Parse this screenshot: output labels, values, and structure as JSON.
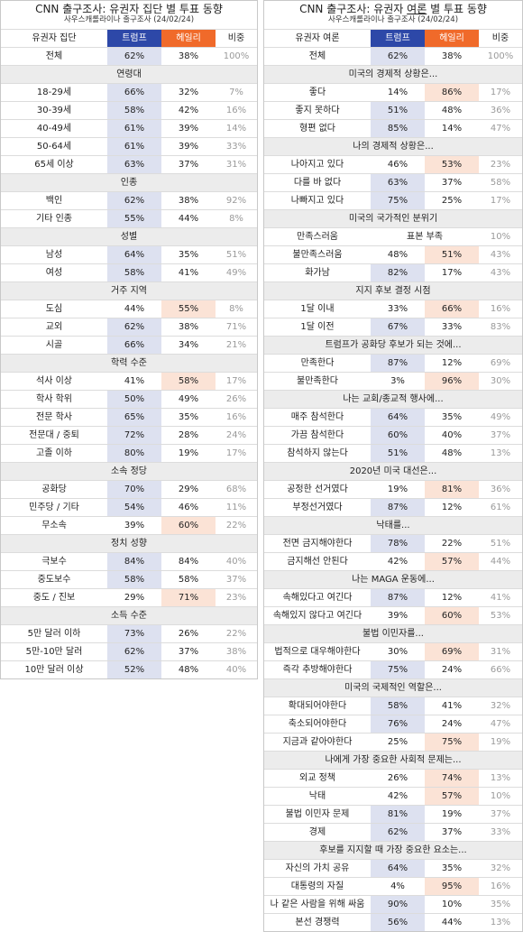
{
  "colors": {
    "trump_header": "#2d48a8",
    "haley_header": "#f06a2a",
    "trump_highlight": "#dde1f0",
    "haley_highlight": "#fbe3d6",
    "section_background": "#ececec"
  },
  "left": {
    "title_prefix": "CNN 출구조사: 유권자 집단 별 투표 동향",
    "subtitle": "사우스캐롤라이나 출구조사 (24/02/24)",
    "header": {
      "label": "유권자 집단",
      "trump": "트럼프",
      "haley": "헤일리",
      "share": "비중"
    },
    "rows": [
      {
        "type": "data",
        "label": "전체",
        "trump": "62%",
        "haley": "38%",
        "share": "100%",
        "hl": "trump"
      },
      {
        "type": "section",
        "label": "연령대"
      },
      {
        "type": "data",
        "label": "18-29세",
        "trump": "66%",
        "haley": "32%",
        "share": "7%",
        "hl": "trump"
      },
      {
        "type": "data",
        "label": "30-39세",
        "trump": "58%",
        "haley": "42%",
        "share": "16%",
        "hl": "trump"
      },
      {
        "type": "data",
        "label": "40-49세",
        "trump": "61%",
        "haley": "39%",
        "share": "14%",
        "hl": "trump"
      },
      {
        "type": "data",
        "label": "50-64세",
        "trump": "61%",
        "haley": "39%",
        "share": "33%",
        "hl": "trump"
      },
      {
        "type": "data",
        "label": "65세 이상",
        "trump": "63%",
        "haley": "37%",
        "share": "31%",
        "hl": "trump"
      },
      {
        "type": "section",
        "label": "인종"
      },
      {
        "type": "data",
        "label": "백인",
        "trump": "62%",
        "haley": "38%",
        "share": "92%",
        "hl": "trump"
      },
      {
        "type": "data",
        "label": "기타 인종",
        "trump": "55%",
        "haley": "44%",
        "share": "8%",
        "hl": "trump"
      },
      {
        "type": "section",
        "label": "성별"
      },
      {
        "type": "data",
        "label": "남성",
        "trump": "64%",
        "haley": "35%",
        "share": "51%",
        "hl": "trump"
      },
      {
        "type": "data",
        "label": "여성",
        "trump": "58%",
        "haley": "41%",
        "share": "49%",
        "hl": "trump"
      },
      {
        "type": "section",
        "label": "거주 지역"
      },
      {
        "type": "data",
        "label": "도심",
        "trump": "44%",
        "haley": "55%",
        "share": "8%",
        "hl": "haley"
      },
      {
        "type": "data",
        "label": "교외",
        "trump": "62%",
        "haley": "38%",
        "share": "71%",
        "hl": "trump"
      },
      {
        "type": "data",
        "label": "시골",
        "trump": "66%",
        "haley": "34%",
        "share": "21%",
        "hl": "trump"
      },
      {
        "type": "section",
        "label": "학력 수준"
      },
      {
        "type": "data",
        "label": "석사 이상",
        "trump": "41%",
        "haley": "58%",
        "share": "17%",
        "hl": "haley"
      },
      {
        "type": "data",
        "label": "학사 학위",
        "trump": "50%",
        "haley": "49%",
        "share": "26%",
        "hl": "trump"
      },
      {
        "type": "data",
        "label": "전문 학사",
        "trump": "65%",
        "haley": "35%",
        "share": "16%",
        "hl": "trump"
      },
      {
        "type": "data",
        "label": "전문대 / 중퇴",
        "trump": "72%",
        "haley": "28%",
        "share": "24%",
        "hl": "trump"
      },
      {
        "type": "data",
        "label": "고졸 이하",
        "trump": "80%",
        "haley": "19%",
        "share": "17%",
        "hl": "trump"
      },
      {
        "type": "section",
        "label": "소속 정당"
      },
      {
        "type": "data",
        "label": "공화당",
        "trump": "70%",
        "haley": "29%",
        "share": "68%",
        "hl": "trump"
      },
      {
        "type": "data",
        "label": "민주당 / 기타",
        "trump": "54%",
        "haley": "46%",
        "share": "11%",
        "hl": "trump"
      },
      {
        "type": "data",
        "label": "무소속",
        "trump": "39%",
        "haley": "60%",
        "share": "22%",
        "hl": "haley"
      },
      {
        "type": "section",
        "label": "정치 성향"
      },
      {
        "type": "data",
        "label": "극보수",
        "trump": "84%",
        "haley": "84%",
        "share": "40%",
        "hl": "trump"
      },
      {
        "type": "data",
        "label": "중도보수",
        "trump": "58%",
        "haley": "58%",
        "share": "37%",
        "hl": "trump"
      },
      {
        "type": "data",
        "label": "중도 / 진보",
        "trump": "29%",
        "haley": "71%",
        "share": "23%",
        "hl": "haley"
      },
      {
        "type": "section",
        "label": "소득 수준"
      },
      {
        "type": "data",
        "label": "5만 달러 이하",
        "trump": "73%",
        "haley": "26%",
        "share": "22%",
        "hl": "trump"
      },
      {
        "type": "data",
        "label": "5만-10만 달러",
        "trump": "62%",
        "haley": "37%",
        "share": "38%",
        "hl": "trump"
      },
      {
        "type": "data",
        "label": "10만 달러 이상",
        "trump": "52%",
        "haley": "48%",
        "share": "40%",
        "hl": "trump"
      }
    ]
  },
  "right": {
    "title_prefix": "CNN 출구조사: 유권자 ",
    "title_underlined": "여론",
    "title_suffix": " 별 투표 동향",
    "subtitle": "사우스캐롤라이나 출구조사 (24/02/24)",
    "header": {
      "label": "유권자 여론",
      "trump": "트럼프",
      "haley": "헤일리",
      "share": "비중"
    },
    "rows": [
      {
        "type": "data",
        "label": "전체",
        "trump": "62%",
        "haley": "38%",
        "share": "100%",
        "hl": "trump"
      },
      {
        "type": "section",
        "label": "미국의 경제적 상황은..."
      },
      {
        "type": "data",
        "label": "좋다",
        "trump": "14%",
        "haley": "86%",
        "share": "17%",
        "hl": "haley"
      },
      {
        "type": "data",
        "label": "좋지 못하다",
        "trump": "51%",
        "haley": "48%",
        "share": "36%",
        "hl": "trump"
      },
      {
        "type": "data",
        "label": "형편 없다",
        "trump": "85%",
        "haley": "14%",
        "share": "47%",
        "hl": "trump"
      },
      {
        "type": "section",
        "label": "나의 경제적 상황은..."
      },
      {
        "type": "data",
        "label": "나아지고 있다",
        "trump": "46%",
        "haley": "53%",
        "share": "23%",
        "hl": "haley"
      },
      {
        "type": "data",
        "label": "다를 바 없다",
        "trump": "63%",
        "haley": "37%",
        "share": "58%",
        "hl": "trump"
      },
      {
        "type": "data",
        "label": "나빠지고 있다",
        "trump": "75%",
        "haley": "25%",
        "share": "17%",
        "hl": "trump"
      },
      {
        "type": "section",
        "label": "미국의 국가적인 분위기"
      },
      {
        "type": "data",
        "label": "만족스러움",
        "span": "표본 부족",
        "share": "10%"
      },
      {
        "type": "data",
        "label": "불만족스러움",
        "trump": "48%",
        "haley": "51%",
        "share": "43%",
        "hl": "haley"
      },
      {
        "type": "data",
        "label": "화가남",
        "trump": "82%",
        "haley": "17%",
        "share": "43%",
        "hl": "trump"
      },
      {
        "type": "section",
        "label": "지지 후보 결정 시점"
      },
      {
        "type": "data",
        "label": "1달 이내",
        "trump": "33%",
        "haley": "66%",
        "share": "16%",
        "hl": "haley"
      },
      {
        "type": "data",
        "label": "1달 이전",
        "trump": "67%",
        "haley": "33%",
        "share": "83%",
        "hl": "trump"
      },
      {
        "type": "section",
        "label": "트럼프가 공화당 후보가 되는 것에..."
      },
      {
        "type": "data",
        "label": "만족한다",
        "trump": "87%",
        "haley": "12%",
        "share": "69%",
        "hl": "trump"
      },
      {
        "type": "data",
        "label": "불만족한다",
        "trump": "3%",
        "haley": "96%",
        "share": "30%",
        "hl": "haley"
      },
      {
        "type": "section",
        "label": "나는 교회/종교적 행사에..."
      },
      {
        "type": "data",
        "label": "매주 참석한다",
        "trump": "64%",
        "haley": "35%",
        "share": "49%",
        "hl": "trump"
      },
      {
        "type": "data",
        "label": "가끔 참석한다",
        "trump": "60%",
        "haley": "40%",
        "share": "37%",
        "hl": "trump"
      },
      {
        "type": "data",
        "label": "참석하지 않는다",
        "trump": "51%",
        "haley": "48%",
        "share": "13%",
        "hl": "trump"
      },
      {
        "type": "section",
        "label": "2020년 미국 대선은..."
      },
      {
        "type": "data",
        "label": "공정한 선거였다",
        "trump": "19%",
        "haley": "81%",
        "share": "36%",
        "hl": "haley"
      },
      {
        "type": "data",
        "label": "부정선거였다",
        "trump": "87%",
        "haley": "12%",
        "share": "61%",
        "hl": "trump"
      },
      {
        "type": "section",
        "label": "낙태를..."
      },
      {
        "type": "data",
        "label": "전면 금지해야한다",
        "trump": "78%",
        "haley": "22%",
        "share": "51%",
        "hl": "trump"
      },
      {
        "type": "data",
        "label": "금지해선 안된다",
        "trump": "42%",
        "haley": "57%",
        "share": "44%",
        "hl": "haley"
      },
      {
        "type": "section",
        "label": "나는 MAGA 운동에..."
      },
      {
        "type": "data",
        "label": "속해있다고 여긴다",
        "trump": "87%",
        "haley": "12%",
        "share": "41%",
        "hl": "trump"
      },
      {
        "type": "data",
        "label": "속해있지 않다고 여긴다",
        "trump": "39%",
        "haley": "60%",
        "share": "53%",
        "hl": "haley"
      },
      {
        "type": "section",
        "label": "불법 이민자를..."
      },
      {
        "type": "data",
        "label": "법적으로 대우해야한다",
        "trump": "30%",
        "haley": "69%",
        "share": "31%",
        "hl": "haley"
      },
      {
        "type": "data",
        "label": "즉각 추방해야한다",
        "trump": "75%",
        "haley": "24%",
        "share": "66%",
        "hl": "trump"
      },
      {
        "type": "section",
        "label": "미국의 국제적인 역할은..."
      },
      {
        "type": "data",
        "label": "확대되어야한다",
        "trump": "58%",
        "haley": "41%",
        "share": "32%",
        "hl": "trump"
      },
      {
        "type": "data",
        "label": "축소되어야한다",
        "trump": "76%",
        "haley": "24%",
        "share": "47%",
        "hl": "trump"
      },
      {
        "type": "data",
        "label": "지금과 같아야한다",
        "trump": "25%",
        "haley": "75%",
        "share": "19%",
        "hl": "haley"
      },
      {
        "type": "section",
        "label": "나에게 가장 중요한 사회적 문제는..."
      },
      {
        "type": "data",
        "label": "외교 정책",
        "trump": "26%",
        "haley": "74%",
        "share": "13%",
        "hl": "haley"
      },
      {
        "type": "data",
        "label": "낙태",
        "trump": "42%",
        "haley": "57%",
        "share": "10%",
        "hl": "haley"
      },
      {
        "type": "data",
        "label": "불법 이민자 문제",
        "trump": "81%",
        "haley": "19%",
        "share": "37%",
        "hl": "trump"
      },
      {
        "type": "data",
        "label": "경제",
        "trump": "62%",
        "haley": "37%",
        "share": "33%",
        "hl": "trump"
      },
      {
        "type": "section",
        "label": "후보를 지지할 때 가장 중요한 요소는..."
      },
      {
        "type": "data",
        "label": "자신의 가치 공유",
        "trump": "64%",
        "haley": "35%",
        "share": "32%",
        "hl": "trump"
      },
      {
        "type": "data",
        "label": "대통령의 자질",
        "trump": "4%",
        "haley": "95%",
        "share": "16%",
        "hl": "haley"
      },
      {
        "type": "data",
        "label": "나 같은 사람을 위해 싸움",
        "trump": "90%",
        "haley": "10%",
        "share": "35%",
        "hl": "trump"
      },
      {
        "type": "data",
        "label": "본선 경쟁력",
        "trump": "56%",
        "haley": "44%",
        "share": "13%",
        "hl": "trump"
      }
    ]
  },
  "chart_data": [
    {
      "type": "table",
      "title": "CNN 출구조사: 유권자 집단 별 투표 동향",
      "subtitle": "사우스캐롤라이나 출구조사 (24/02/24)",
      "columns": [
        "유권자 집단",
        "트럼프",
        "헤일리",
        "비중"
      ]
    },
    {
      "type": "table",
      "title": "CNN 출구조사: 유권자 여론 별 투표 동향",
      "subtitle": "사우스캐롤라이나 출구조사 (24/02/24)",
      "columns": [
        "유권자 여론",
        "트럼프",
        "헤일리",
        "비중"
      ]
    }
  ]
}
